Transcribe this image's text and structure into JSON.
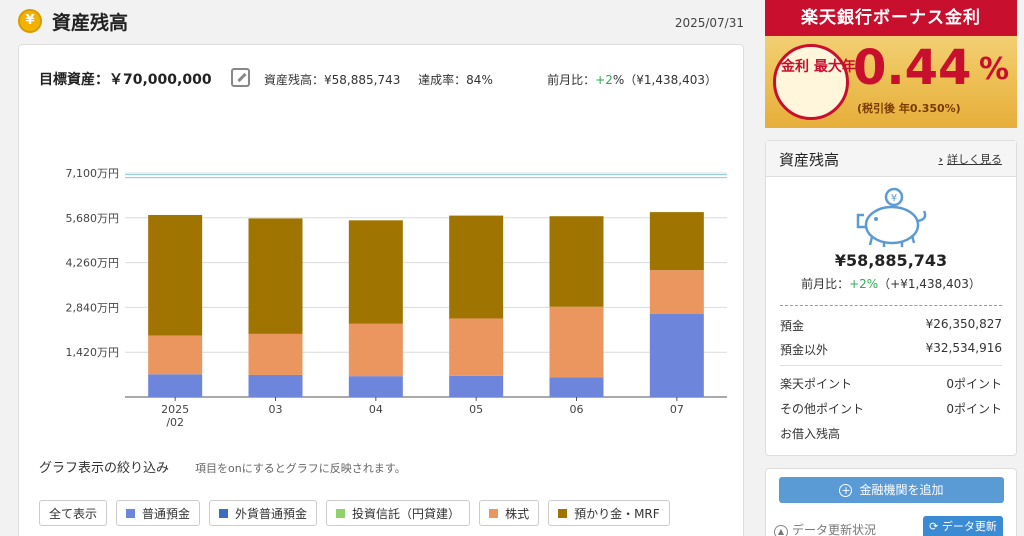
{
  "header": {
    "title": "資産残高",
    "date": "2025/07/31",
    "badge": "¥"
  },
  "summary": {
    "goal": "目標資産：￥70,000,000",
    "balance": "資産残高：¥58,885,743",
    "rate": "達成率：84%",
    "mom_prefix": "前月比：",
    "mom_pct": "+2",
    "mom_suffix": "%（¥1,438,403）"
  },
  "chart_data": {
    "type": "bar",
    "stacked": true,
    "categories": [
      "2025/02",
      "03",
      "04",
      "05",
      "06",
      "07"
    ],
    "category_lines": [
      [
        "2025",
        "/02"
      ],
      [
        "03"
      ],
      [
        "04"
      ],
      [
        "05"
      ],
      [
        "06"
      ],
      [
        "07"
      ]
    ],
    "y_ticks": [
      "1,420万円",
      "2,840万円",
      "4,260万円",
      "5,680万円",
      "7,100万円"
    ],
    "y_tick_values": [
      1420,
      2840,
      4260,
      5680,
      7100
    ],
    "ylim": [
      0,
      7100
    ],
    "unit": "万円",
    "goal_line": 7000,
    "series": [
      {
        "name": "普通預金",
        "color": "#6d86dc",
        "values": [
          720,
          700,
          660,
          670,
          620,
          2630
        ]
      },
      {
        "name": "株式",
        "color": "#ea965e",
        "values": [
          1230,
          1300,
          1660,
          1820,
          2240,
          1390
        ]
      },
      {
        "name": "預かり金・MRF",
        "color": "#a07400",
        "values": [
          3820,
          3660,
          3280,
          3260,
          2870,
          1840
        ]
      }
    ],
    "grid": true
  },
  "filter": {
    "title": "グラフ表示の絞り込み",
    "note": "項目をonにするとグラフに反映されます。",
    "chips": [
      {
        "label": "全て表示",
        "color": ""
      },
      {
        "label": "普通預金",
        "color": "#6d86dc"
      },
      {
        "label": "外貨普通預金",
        "color": "#3a6fbf"
      },
      {
        "label": "投資信託（円貸建）",
        "color": "#8fd16b"
      },
      {
        "label": "株式",
        "color": "#ea965e"
      },
      {
        "label": "預かり金・MRF",
        "color": "#a07400"
      }
    ]
  },
  "banner": {
    "top": "楽天銀行ボーナス金利",
    "label": "金利 最大年",
    "rate": "0.44",
    "pct": "%",
    "sub": "(税引後 年0.350%)"
  },
  "side": {
    "title": "資産残高",
    "link": "詳しく見る",
    "total": "¥58,885,743",
    "mom_prefix": "前月比：",
    "mom_pct": "+2%",
    "mom_suffix": "（+¥1,438,403）",
    "rows": [
      {
        "label": "預金",
        "value": "¥26,350,827"
      },
      {
        "label": "預金以外",
        "value": "¥32,534,916"
      },
      {
        "label": "楽天ポイント",
        "value": "0ポイント"
      },
      {
        "label": "その他ポイント",
        "value": "0ポイント"
      },
      {
        "label": "お借入残高",
        "value": ""
      }
    ]
  },
  "side2": {
    "add": "金融機関を追加",
    "status": "データ更新状況",
    "update": "データ更新"
  }
}
